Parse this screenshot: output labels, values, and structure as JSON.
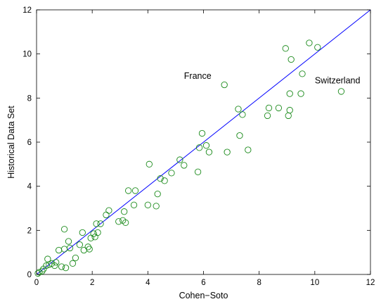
{
  "chart_data": {
    "type": "scatter",
    "xlabel": "Cohen−Soto",
    "ylabel": "Historical Data Set",
    "xlim": [
      0,
      12
    ],
    "ylim": [
      0,
      12
    ],
    "xticks": [
      "0",
      "2",
      "4",
      "6",
      "8",
      "10",
      "12"
    ],
    "yticks": [
      "0",
      "2",
      "4",
      "6",
      "8",
      "10",
      "12"
    ],
    "grid": false,
    "colors": {
      "points": "#1a8a1a",
      "line": "#0000ff",
      "axes": "#000000"
    },
    "reference_line": {
      "x": [
        0,
        12
      ],
      "y": [
        0,
        12
      ]
    },
    "annotations": [
      {
        "text": "France",
        "x": 5.3,
        "y": 9.0,
        "anchor": "start"
      },
      {
        "text": "Switzerland",
        "x": 10.0,
        "y": 8.8,
        "anchor": "start"
      }
    ],
    "points": [
      [
        0.05,
        0.05
      ],
      [
        0.1,
        0.1
      ],
      [
        0.2,
        0.15
      ],
      [
        0.25,
        0.25
      ],
      [
        0.35,
        0.4
      ],
      [
        0.4,
        0.7
      ],
      [
        0.45,
        0.45
      ],
      [
        0.55,
        0.5
      ],
      [
        0.65,
        0.4
      ],
      [
        0.7,
        0.55
      ],
      [
        0.8,
        1.1
      ],
      [
        0.9,
        0.35
      ],
      [
        1.0,
        2.05
      ],
      [
        1.0,
        1.15
      ],
      [
        1.05,
        0.3
      ],
      [
        1.15,
        1.5
      ],
      [
        1.2,
        1.2
      ],
      [
        1.3,
        0.5
      ],
      [
        1.4,
        0.75
      ],
      [
        1.55,
        1.35
      ],
      [
        1.65,
        1.9
      ],
      [
        1.7,
        1.1
      ],
      [
        1.85,
        1.25
      ],
      [
        1.9,
        1.15
      ],
      [
        1.95,
        1.65
      ],
      [
        2.05,
        1.85
      ],
      [
        2.1,
        1.7
      ],
      [
        2.15,
        2.3
      ],
      [
        2.2,
        1.9
      ],
      [
        2.3,
        2.3
      ],
      [
        2.5,
        2.7
      ],
      [
        2.6,
        2.9
      ],
      [
        2.95,
        2.4
      ],
      [
        3.1,
        2.45
      ],
      [
        3.15,
        2.85
      ],
      [
        3.2,
        2.35
      ],
      [
        3.3,
        3.8
      ],
      [
        3.5,
        3.15
      ],
      [
        3.55,
        3.8
      ],
      [
        4.0,
        3.15
      ],
      [
        4.05,
        5.0
      ],
      [
        4.3,
        3.1
      ],
      [
        4.35,
        3.65
      ],
      [
        4.45,
        4.35
      ],
      [
        4.6,
        4.25
      ],
      [
        4.85,
        4.6
      ],
      [
        5.15,
        5.2
      ],
      [
        5.3,
        4.95
      ],
      [
        5.8,
        4.65
      ],
      [
        5.85,
        5.75
      ],
      [
        5.95,
        6.4
      ],
      [
        6.1,
        5.85
      ],
      [
        6.2,
        5.55
      ],
      [
        6.75,
        8.6
      ],
      [
        6.85,
        5.55
      ],
      [
        7.25,
        7.5
      ],
      [
        7.3,
        6.3
      ],
      [
        7.4,
        7.25
      ],
      [
        7.6,
        5.65
      ],
      [
        8.3,
        7.2
      ],
      [
        8.35,
        7.55
      ],
      [
        8.7,
        7.55
      ],
      [
        8.95,
        10.25
      ],
      [
        9.05,
        7.2
      ],
      [
        9.1,
        7.45
      ],
      [
        9.1,
        8.2
      ],
      [
        9.15,
        9.75
      ],
      [
        9.5,
        8.2
      ],
      [
        9.55,
        9.1
      ],
      [
        9.8,
        10.5
      ],
      [
        10.1,
        10.3
      ],
      [
        10.95,
        8.3
      ]
    ]
  }
}
